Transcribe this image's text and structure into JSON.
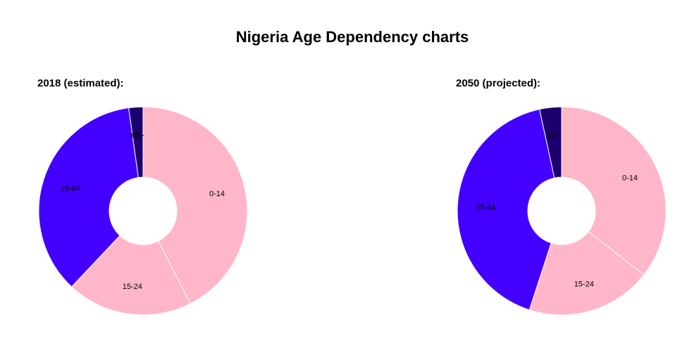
{
  "title": "Nigeria Age Dependency charts",
  "chart_data": [
    {
      "type": "pie",
      "title": "2018 (estimated):",
      "categories": [
        "0-14",
        "15-24",
        "25-64",
        "65+"
      ],
      "values": [
        42.5,
        19.5,
        35.8,
        2.2
      ],
      "colors": [
        "#ffb6c8",
        "#ffb6c8",
        "#4400ff",
        "#1c006e"
      ],
      "donut": true
    },
    {
      "type": "pie",
      "title": "2050 (projected):",
      "categories": [
        "0-14",
        "15-24",
        "25-64",
        "65+"
      ],
      "values": [
        35.5,
        19.5,
        41.6,
        3.4
      ],
      "colors": [
        "#ffb6c8",
        "#ffb6c8",
        "#4400ff",
        "#1c006e"
      ],
      "donut": true
    }
  ]
}
